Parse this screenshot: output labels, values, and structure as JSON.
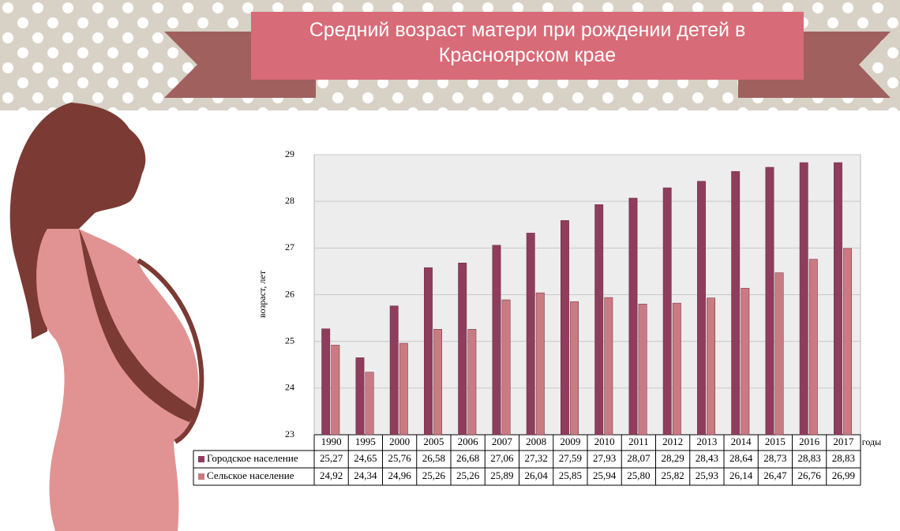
{
  "chart_data": {
    "type": "bar",
    "title": "Средний возраст матери при рождении детей в Красноярском крае",
    "x_label": "годы",
    "y_label": "возраст, лет",
    "categories": [
      "1990",
      "1995",
      "2000",
      "2005",
      "2006",
      "2007",
      "2008",
      "2009",
      "2010",
      "2011",
      "2012",
      "2013",
      "2014",
      "2015",
      "2016",
      "2017"
    ],
    "series": [
      {
        "name": "Городское население",
        "color": "#8e3d5c",
        "values": [
          25.27,
          24.65,
          25.76,
          26.58,
          26.68,
          27.06,
          27.32,
          27.59,
          27.93,
          28.07,
          28.29,
          28.43,
          28.64,
          28.73,
          28.83,
          28.83
        ],
        "value_labels": [
          "25,27",
          "24,65",
          "25,76",
          "26,58",
          "26,68",
          "27,06",
          "27,32",
          "27,59",
          "27,93",
          "28,07",
          "28,29",
          "28,43",
          "28,64",
          "28,73",
          "28,83",
          "28,83"
        ]
      },
      {
        "name": "Сельское население",
        "color": "#c97b82",
        "values": [
          24.92,
          24.34,
          24.96,
          25.26,
          25.26,
          25.89,
          26.04,
          25.85,
          25.94,
          25.8,
          25.82,
          25.93,
          26.14,
          26.47,
          26.76,
          26.99
        ],
        "value_labels": [
          "24,92",
          "24,34",
          "24,96",
          "25,26",
          "25,26",
          "25,89",
          "26,04",
          "25,85",
          "25,94",
          "25,80",
          "25,82",
          "25,93",
          "26,14",
          "26,47",
          "26,76",
          "26,99"
        ]
      }
    ],
    "ylim": [
      23,
      29
    ],
    "yticks": [
      23,
      24,
      25,
      26,
      27,
      28,
      29
    ],
    "grid": true
  }
}
